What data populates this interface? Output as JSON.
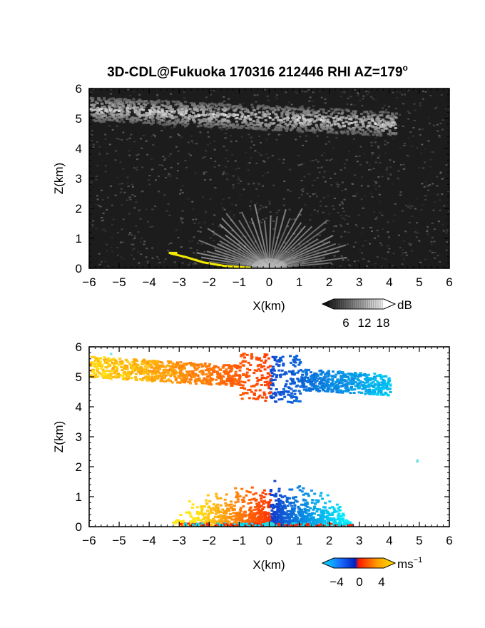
{
  "title": "3D-CDL@Fukuoka 170316 212446 RHI AZ=179",
  "title_degree": "o",
  "colors": {
    "background": "#ffffff",
    "reflectivity_panel_bg": "#1c1c1c",
    "ground_clutter_yellow": "#f2ea00",
    "velocity_negative": "#1a5cff",
    "velocity_zero": "#ff2a00",
    "velocity_positive": "#ffd400"
  },
  "chart_data": [
    {
      "type": "heatmap",
      "panel": "reflectivity",
      "ylabel": "Z(km)",
      "xlabel": "X(km)",
      "xlim": [
        -6,
        6
      ],
      "ylim": [
        0,
        6
      ],
      "x_ticks": [
        "−6",
        "−5",
        "−4",
        "−3",
        "−2",
        "−1",
        "0",
        "1",
        "2",
        "3",
        "4",
        "5",
        "6"
      ],
      "y_ticks": [
        "0",
        "1",
        "2",
        "3",
        "4",
        "5",
        "6"
      ],
      "colorbar": {
        "unit": "dB",
        "tick_labels": [
          "6",
          "12",
          "18"
        ],
        "range": [
          0,
          21
        ]
      },
      "features": [
        {
          "name": "cloud layer",
          "x_range": [
            -6,
            4.2
          ],
          "z_range": [
            4.5,
            5.6
          ]
        },
        {
          "name": "near-field fan",
          "x_range": [
            -2.5,
            2.8
          ],
          "z_range": [
            0,
            1.8
          ]
        },
        {
          "name": "yellow ground clutter",
          "points": [
            [
              -3.3,
              0.5
            ],
            [
              -2.8,
              0.38
            ],
            [
              -2.2,
              0.2
            ],
            [
              -1.5,
              0.08
            ],
            [
              -0.6,
              0.02
            ]
          ]
        }
      ]
    },
    {
      "type": "heatmap",
      "panel": "doppler_velocity",
      "ylabel": "Z(km)",
      "xlabel": "X(km)",
      "xlim": [
        -6,
        6
      ],
      "ylim": [
        0,
        6
      ],
      "x_ticks": [
        "−6",
        "−5",
        "−4",
        "−3",
        "−2",
        "−1",
        "0",
        "1",
        "2",
        "3",
        "4",
        "5",
        "6"
      ],
      "y_ticks": [
        "0",
        "1",
        "2",
        "3",
        "4",
        "5",
        "6"
      ],
      "colorbar": {
        "unit": "ms",
        "unit_exponent": "−1",
        "tick_labels": [
          "−4",
          "0",
          "4"
        ],
        "range": [
          -5,
          5
        ]
      },
      "features": [
        {
          "name": "cloud layer",
          "x_range": [
            -6,
            4.0
          ],
          "z_range": [
            4.1,
            5.9
          ],
          "velocity_sign": "positive west, negative east"
        },
        {
          "name": "near-field echo",
          "x_range": [
            -3.5,
            2.8
          ],
          "z_range": [
            0,
            1.7
          ],
          "velocity_sign": "positive west, negative east"
        },
        {
          "name": "isolated pixel",
          "x": 4.9,
          "z": 2.25
        }
      ]
    }
  ]
}
